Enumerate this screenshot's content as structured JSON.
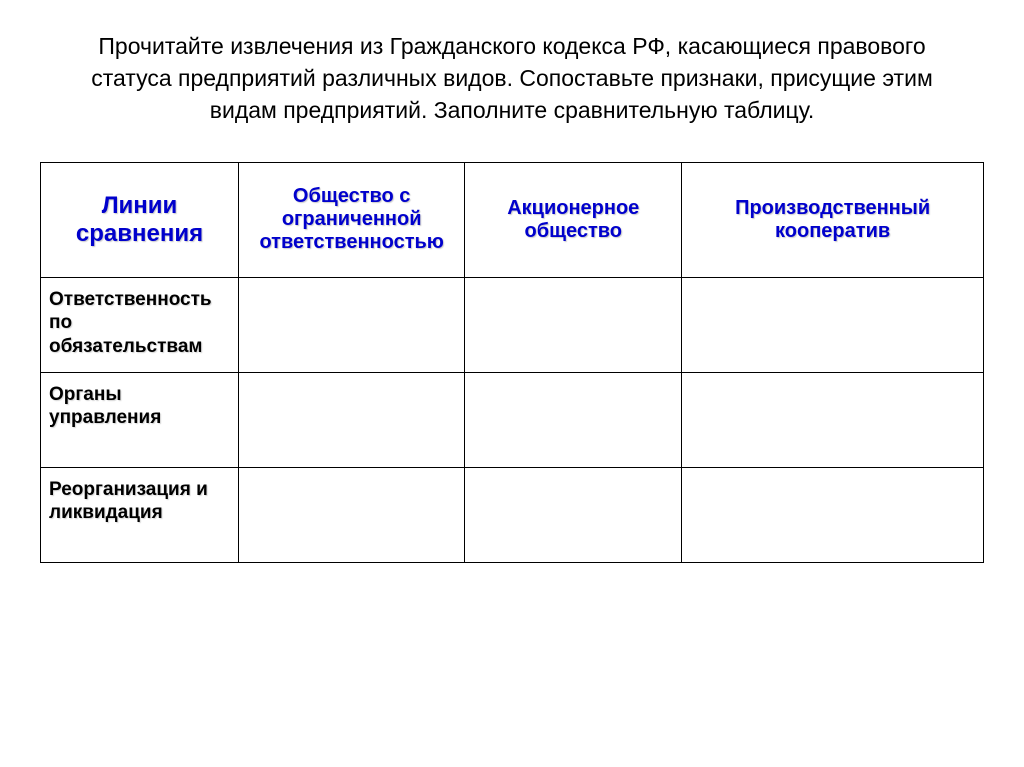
{
  "title": "Прочитайте извлечения из Гражданского кодекса РФ, касающиеся правового статуса предприятий различных видов. Сопоставьте признаки, присущие этим видам предприятий. Заполните сравнительную таблицу.",
  "table": {
    "columns": [
      "Линии сравнения",
      "Общество с ограниченной ответственностью",
      "Акционерное общество",
      "Производственный кооператив"
    ],
    "rows": [
      {
        "label": "Ответственность по обязательствам",
        "cells": [
          "",
          "",
          ""
        ]
      },
      {
        "label": "Органы управления",
        "cells": [
          "",
          "",
          ""
        ]
      },
      {
        "label": "Реорганизация и ликвидация",
        "cells": [
          "",
          "",
          ""
        ]
      }
    ],
    "header_color": "#0000cc",
    "header_fontsize_first": 24,
    "header_fontsize_rest": 20,
    "rowlabel_fontsize": 19,
    "border_color": "#000000",
    "background_color": "#ffffff",
    "col_widths_pct": [
      21,
      24,
      23,
      32
    ]
  },
  "title_fontsize": 23,
  "title_color": "#000000"
}
